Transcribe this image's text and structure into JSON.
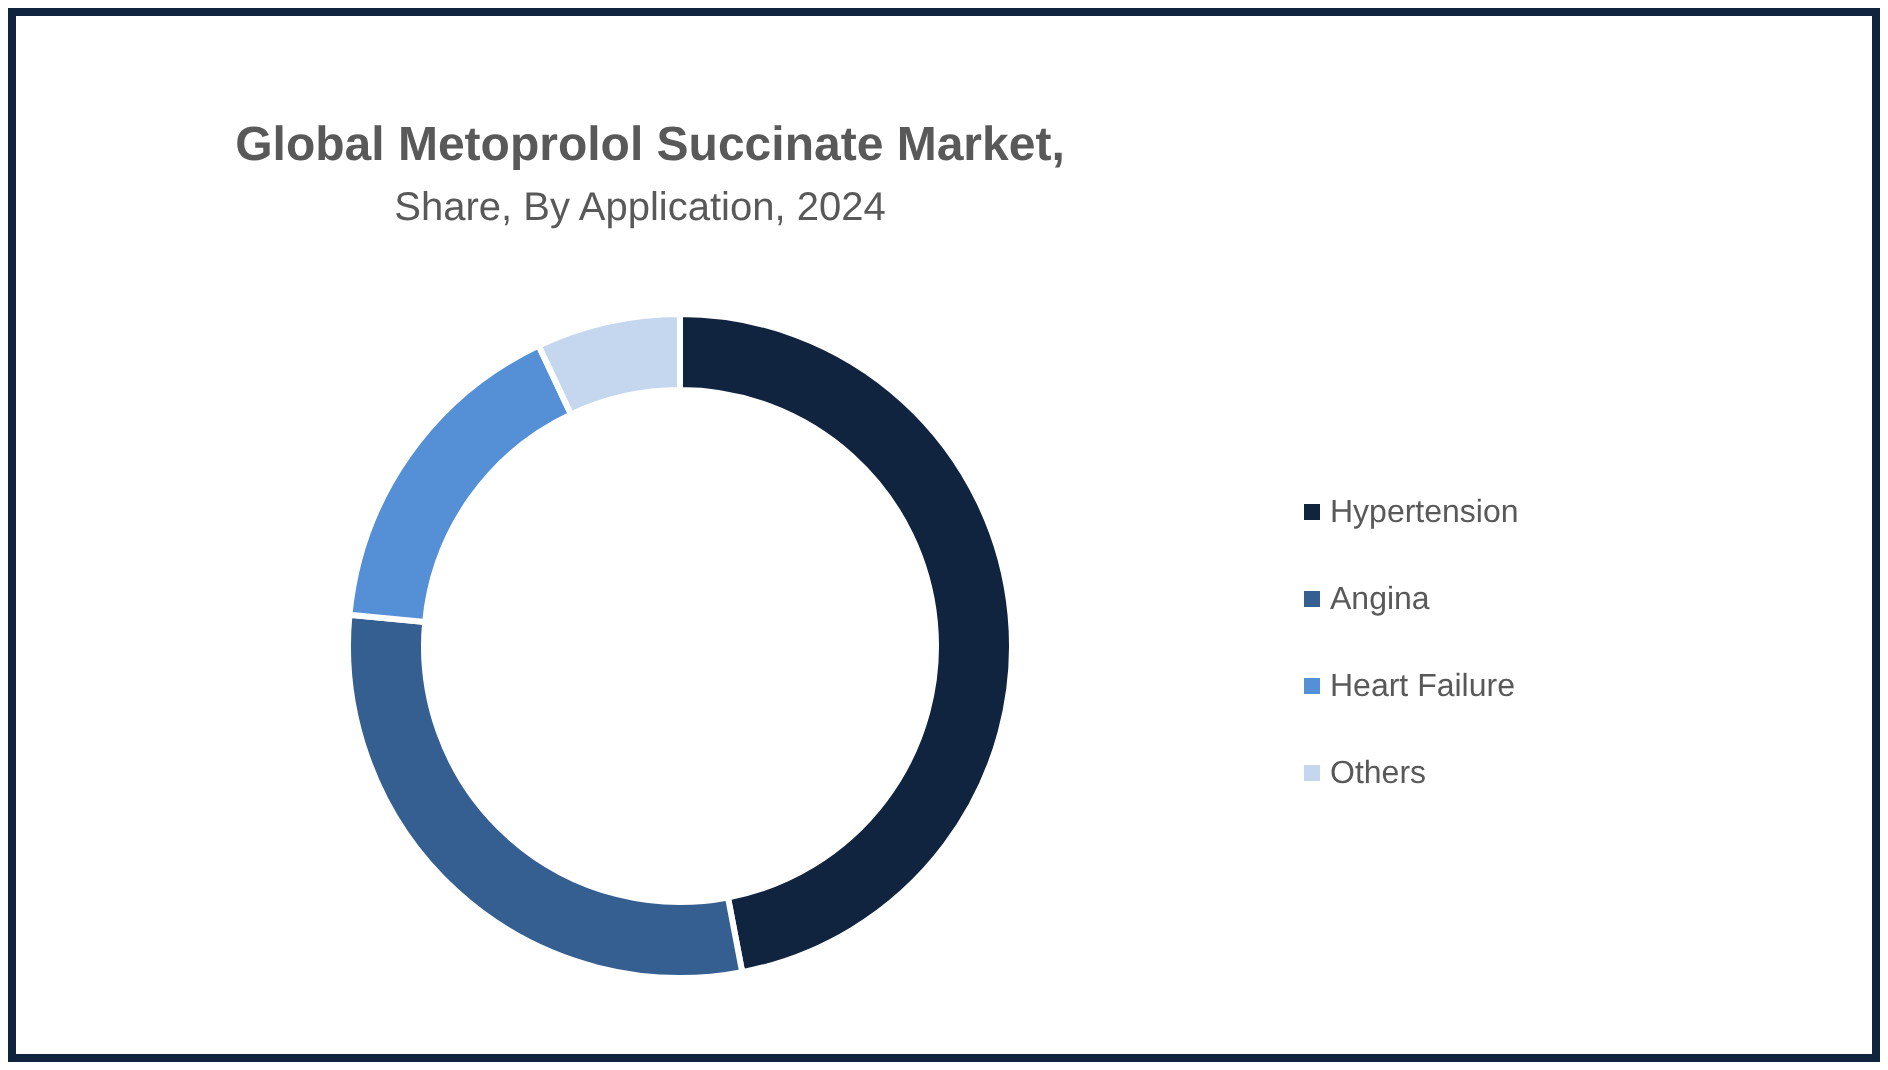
{
  "chart_data": {
    "type": "donut",
    "title": "Global Metoprolol Succinate Market,",
    "subtitle": "Share, By Application, 2024",
    "categories": [
      "Hypertension",
      "Angina",
      "Heart Failure",
      "Others"
    ],
    "values": [
      47,
      29.5,
      16.5,
      7
    ],
    "colors": [
      "#10233f",
      "#355f91",
      "#5590d6",
      "#c5d7ef"
    ],
    "legend": "right"
  }
}
